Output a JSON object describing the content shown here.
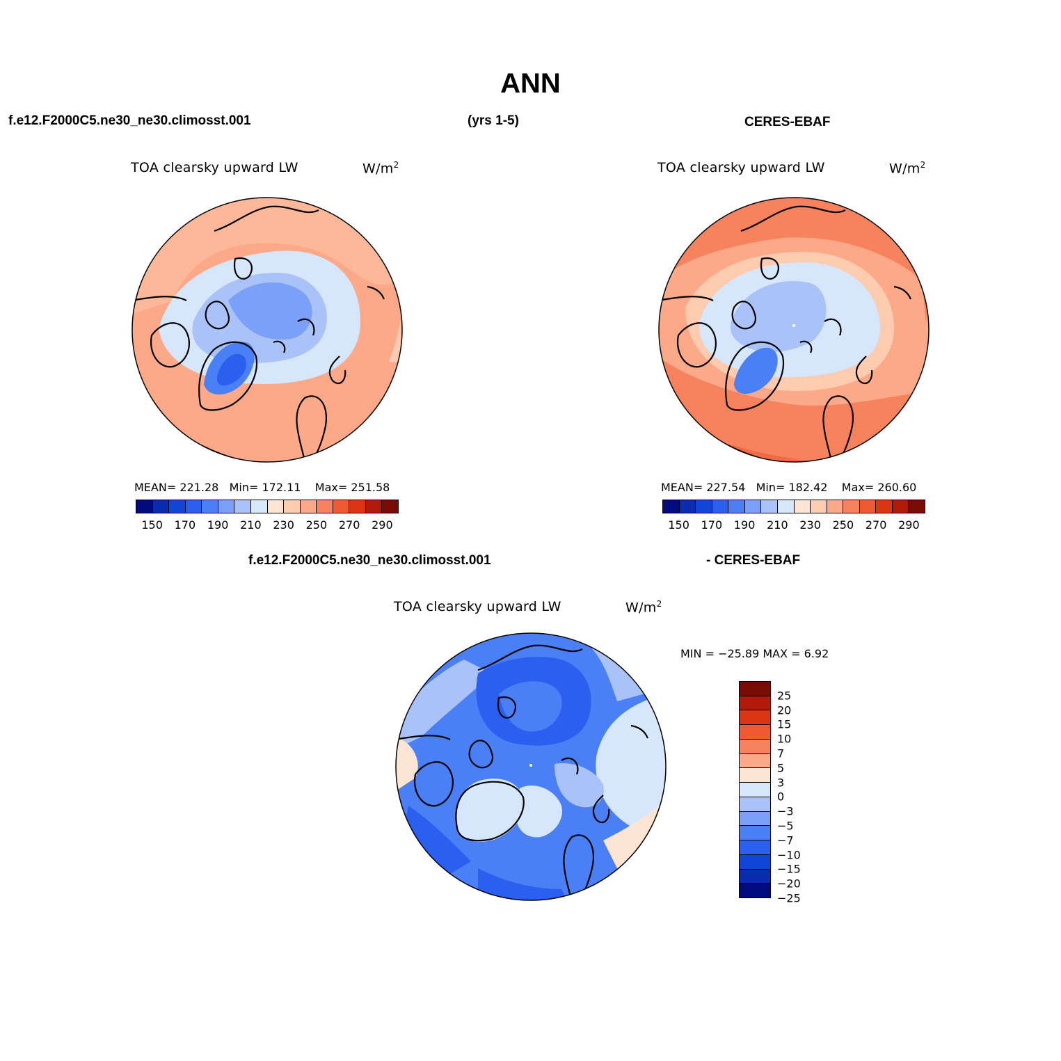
{
  "title": "ANN",
  "case_name": "f.e12.F2000C5.ne30_ne30.climosst.001",
  "years": "(yrs 1-5)",
  "obs_name": "CERES-EBAF",
  "diff_case_name": "f.e12.F2000C5.ne30_ne30.climosst.001",
  "diff_obs_name": "- CERES-EBAF",
  "variable_label": "TOA clearsky upward LW",
  "units_label": "W/m",
  "units_superscript": "2",
  "panels": {
    "model": {
      "mean": "MEAN= 221.28",
      "min": "Min= 172.11",
      "max": "Max= 251.58"
    },
    "obs": {
      "mean": "MEAN= 227.54",
      "min": "Min= 182.42",
      "max": "Max= 260.60"
    },
    "diff": {
      "minmax": "MIN = −25.89  MAX =    6.92"
    }
  },
  "abs_colorbar": {
    "colors": [
      "#000c7e",
      "#0a2cae",
      "#0f46d8",
      "#2a5fef",
      "#4a7ff5",
      "#7ba0f7",
      "#a9c2f8",
      "#d6e6fb",
      "#fde5d4",
      "#fdcbb0",
      "#fca98a",
      "#f7825e",
      "#ef5a33",
      "#db3511",
      "#b11a08",
      "#780b04"
    ],
    "tick_labels": [
      "150",
      "170",
      "190",
      "210",
      "230",
      "250",
      "270",
      "290"
    ]
  },
  "diff_colorbar": {
    "colors": [
      "#780b04",
      "#b11a08",
      "#db3511",
      "#ef5a33",
      "#f7825e",
      "#fca98a",
      "#fde5d4",
      "#d6e6fb",
      "#a9c2f8",
      "#7ba0f7",
      "#4a7ff5",
      "#2a5fef",
      "#0f46d8",
      "#0a2cae",
      "#000c7e"
    ],
    "labels": [
      "25",
      "20",
      "15",
      "10",
      "7",
      "5",
      "3",
      "0",
      "−3",
      "−5",
      "−7",
      "−10",
      "−15",
      "−20",
      "−25"
    ]
  }
}
